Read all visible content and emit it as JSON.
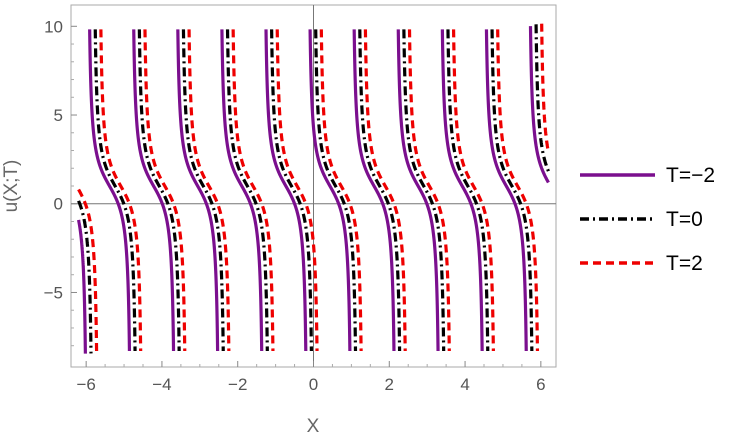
{
  "chart_data": {
    "type": "line",
    "title": "",
    "xlabel": "X",
    "ylabel": "u(X;T)",
    "xlim": [
      -6.4,
      6.4
    ],
    "ylim": [
      -9.2,
      11.2
    ],
    "x_ticks": [
      -6,
      -4,
      -2,
      0,
      2,
      4,
      6
    ],
    "y_ticks": [
      -5,
      0,
      5,
      10
    ],
    "x_tick_labels": [
      "−6",
      "−4",
      "−2",
      "0",
      "2",
      "4",
      "6"
    ],
    "y_tick_labels": [
      "−5",
      "0",
      "5",
      "10"
    ],
    "grid": false,
    "legend_position": "right",
    "clip_range": [
      -8.5,
      10.2
    ],
    "model": "y = a + b*cot(k*x + phase)",
    "series": [
      {
        "name": "T=−2",
        "color": "#7B0F8E",
        "dash": "solid",
        "a": 1.0,
        "b": 1.4,
        "k": 2.7,
        "phase": 0.4
      },
      {
        "name": "T=0",
        "color": "#000000",
        "dash": "dashdot",
        "a": 1.0,
        "b": 1.4,
        "k": 2.7,
        "phase": 0.0
      },
      {
        "name": "T=2",
        "color": "#EE0000",
        "dash": "dashed",
        "a": 1.0,
        "b": 1.4,
        "k": 2.7,
        "phase": -0.4
      }
    ]
  }
}
